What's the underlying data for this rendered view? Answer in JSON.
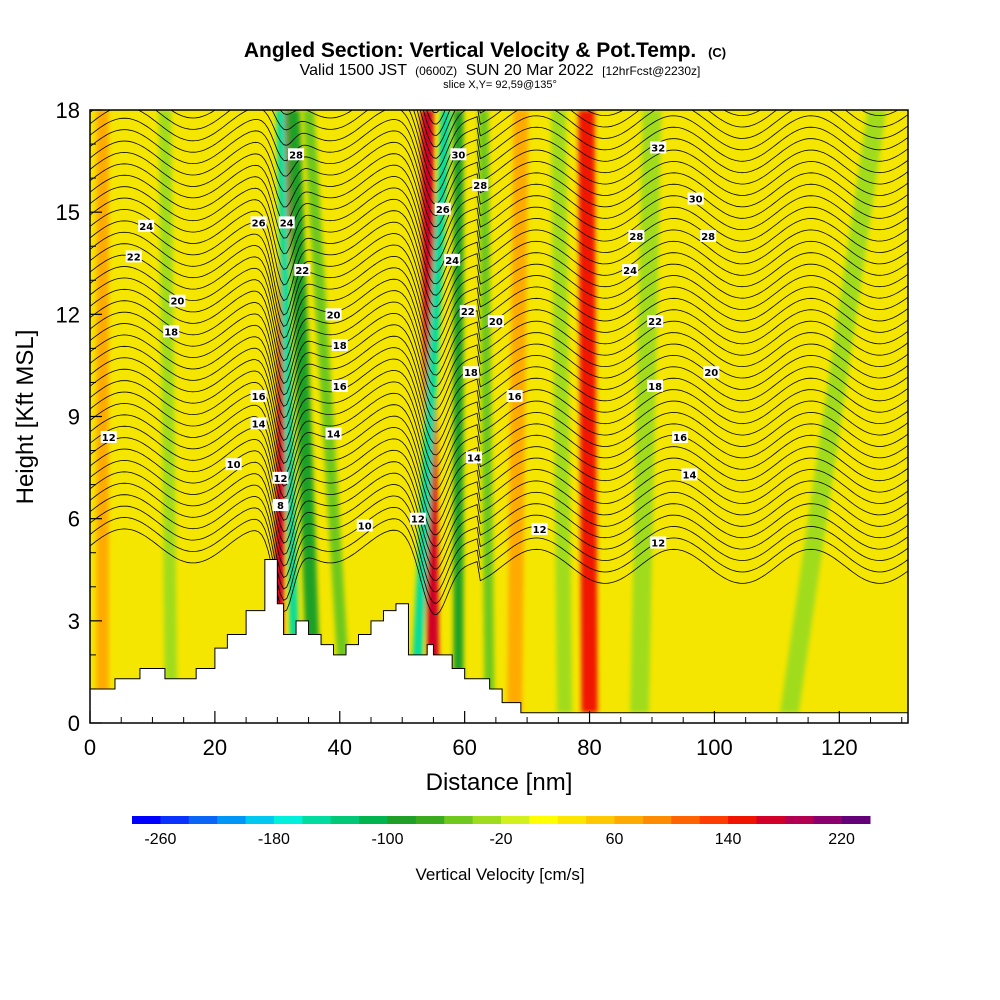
{
  "header": {
    "title": "Angled Section: Vertical Velocity & Pot.Temp.",
    "title_unit": "(C)",
    "valid_prefix": "Valid 1500 JST",
    "valid_utc": "(0600Z)",
    "valid_date": "SUN 20 Mar 2022",
    "forecast": "[12hrFcst@2230z]",
    "slice": "slice X,Y= 92,59@135°"
  },
  "chart_data": {
    "type": "heatmap",
    "xlabel": "Distance [nm]",
    "ylabel": "Height [Kft MSL]",
    "xlim": [
      0,
      131
    ],
    "ylim": [
      0,
      18
    ],
    "xticks": [
      0,
      20,
      40,
      60,
      80,
      100,
      120
    ],
    "yticks": [
      0,
      3,
      6,
      9,
      12,
      15,
      18
    ],
    "xtick_labels": [
      "0",
      "20",
      "40",
      "60",
      "80",
      "100",
      "120"
    ],
    "ytick_labels": [
      "0",
      "3",
      "6",
      "9",
      "12",
      "15",
      "18"
    ],
    "terrain": {
      "x": [
        0,
        4,
        4,
        8,
        8,
        12,
        12,
        17,
        17,
        20,
        20,
        22,
        22,
        25,
        25,
        28,
        28,
        30,
        30,
        31,
        31,
        33,
        33,
        35,
        35,
        37,
        37,
        39,
        39,
        41,
        41,
        43,
        43,
        45,
        45,
        47,
        47,
        49,
        49,
        51,
        51,
        54,
        54,
        55,
        55,
        58,
        58,
        60,
        60,
        64,
        64,
        66,
        66,
        69,
        69,
        71,
        71,
        80,
        80,
        131
      ],
      "y": [
        1.0,
        1.0,
        1.3,
        1.3,
        1.6,
        1.6,
        1.3,
        1.3,
        1.6,
        1.6,
        2.2,
        2.2,
        2.6,
        2.6,
        3.3,
        3.3,
        4.8,
        4.8,
        3.5,
        3.5,
        2.6,
        2.6,
        3.0,
        3.0,
        2.6,
        2.6,
        2.3,
        2.3,
        2.0,
        2.0,
        2.3,
        2.3,
        2.6,
        2.6,
        3.0,
        3.0,
        3.3,
        3.3,
        3.5,
        3.5,
        2.0,
        2.0,
        2.3,
        2.3,
        2.0,
        2.0,
        1.6,
        1.6,
        1.3,
        1.3,
        1.0,
        1.0,
        0.6,
        0.6,
        0.3,
        0.3,
        0.3,
        0.3,
        0.3,
        0.3
      ]
    },
    "vertical_velocity_bands": [
      {
        "x_bottom": 30,
        "x_top": 31.5,
        "width": 1.6,
        "value": 160
      },
      {
        "x_bottom": 33,
        "x_top": 30.5,
        "width": 1.4,
        "value": -150
      },
      {
        "x_bottom": 36,
        "x_top": 32.5,
        "width": 2.2,
        "value": -90
      },
      {
        "x_bottom": 41,
        "x_top": 35,
        "width": 1.8,
        "value": -60
      },
      {
        "x_bottom": 55,
        "x_top": 54,
        "width": 2.0,
        "value": 160
      },
      {
        "x_bottom": 52,
        "x_top": 57,
        "width": 1.6,
        "value": -150
      },
      {
        "x_bottom": 59,
        "x_top": 59,
        "width": 1.6,
        "value": -90
      },
      {
        "x_bottom": 64,
        "x_top": 63,
        "width": 1.6,
        "value": -60
      },
      {
        "x_bottom": 80,
        "x_top": 79.5,
        "width": 2.6,
        "value": 140
      },
      {
        "x_bottom": 68,
        "x_top": 69,
        "width": 2.4,
        "value": 60
      },
      {
        "x_bottom": 76,
        "x_top": 75,
        "width": 2.4,
        "value": -40
      },
      {
        "x_bottom": 88,
        "x_top": 90,
        "width": 3.0,
        "value": -30
      },
      {
        "x_bottom": 13,
        "x_top": 12,
        "width": 2.0,
        "value": -30
      },
      {
        "x_bottom": 112,
        "x_top": 126,
        "width": 3.0,
        "value": -40
      },
      {
        "x_bottom": 2,
        "x_top": 2,
        "width": 2.0,
        "value": 60
      }
    ],
    "theta_isolines": [
      8,
      10,
      12,
      14,
      16,
      18,
      20,
      22,
      24,
      26,
      28,
      30,
      32
    ],
    "contour_labels": [
      {
        "text": "28",
        "x": 33,
        "y": 16.7
      },
      {
        "text": "26",
        "x": 27,
        "y": 14.7
      },
      {
        "text": "24",
        "x": 31.5,
        "y": 14.7
      },
      {
        "text": "24",
        "x": 9,
        "y": 14.6
      },
      {
        "text": "22",
        "x": 7,
        "y": 13.7
      },
      {
        "text": "22",
        "x": 34,
        "y": 13.3
      },
      {
        "text": "20",
        "x": 14,
        "y": 12.4
      },
      {
        "text": "18",
        "x": 13,
        "y": 11.5
      },
      {
        "text": "20",
        "x": 39,
        "y": 12.0
      },
      {
        "text": "18",
        "x": 40,
        "y": 11.1
      },
      {
        "text": "16",
        "x": 40,
        "y": 9.9
      },
      {
        "text": "16",
        "x": 27,
        "y": 9.6
      },
      {
        "text": "14",
        "x": 27,
        "y": 8.8
      },
      {
        "text": "14",
        "x": 39,
        "y": 8.5
      },
      {
        "text": "12",
        "x": 3,
        "y": 8.4
      },
      {
        "text": "10",
        "x": 23,
        "y": 7.6
      },
      {
        "text": "12",
        "x": 30.5,
        "y": 7.2
      },
      {
        "text": "8",
        "x": 30.5,
        "y": 6.4
      },
      {
        "text": "10",
        "x": 44,
        "y": 5.8
      },
      {
        "text": "12",
        "x": 52.5,
        "y": 6.0
      },
      {
        "text": "30",
        "x": 59,
        "y": 16.7
      },
      {
        "text": "28",
        "x": 62.5,
        "y": 15.8
      },
      {
        "text": "26",
        "x": 56.5,
        "y": 15.1
      },
      {
        "text": "24",
        "x": 58,
        "y": 13.6
      },
      {
        "text": "22",
        "x": 60.5,
        "y": 12.1
      },
      {
        "text": "20",
        "x": 65,
        "y": 11.8
      },
      {
        "text": "18",
        "x": 61,
        "y": 10.3
      },
      {
        "text": "16",
        "x": 68,
        "y": 9.6
      },
      {
        "text": "14",
        "x": 61.5,
        "y": 7.8
      },
      {
        "text": "12",
        "x": 72,
        "y": 5.7
      },
      {
        "text": "32",
        "x": 91,
        "y": 16.9
      },
      {
        "text": "30",
        "x": 97,
        "y": 15.4
      },
      {
        "text": "28",
        "x": 87.5,
        "y": 14.3
      },
      {
        "text": "28",
        "x": 99,
        "y": 14.3
      },
      {
        "text": "24",
        "x": 86.5,
        "y": 13.3
      },
      {
        "text": "22",
        "x": 90.5,
        "y": 11.8
      },
      {
        "text": "20",
        "x": 99.5,
        "y": 10.3
      },
      {
        "text": "18",
        "x": 90.5,
        "y": 9.9
      },
      {
        "text": "16",
        "x": 94.5,
        "y": 8.4
      },
      {
        "text": "14",
        "x": 96,
        "y": 7.3
      },
      {
        "text": "12",
        "x": 91,
        "y": 5.3
      }
    ]
  },
  "colorbar": {
    "label": "Vertical Velocity [cm/s]",
    "min": -280,
    "max": 240,
    "step": 20,
    "tick_values": [
      -260,
      -180,
      -100,
      -20,
      60,
      140,
      220
    ],
    "tick_labels": [
      "-260",
      "-180",
      "-100",
      "-20",
      "60",
      "140",
      "220"
    ],
    "colors": [
      "#0000ff",
      "#0a32ff",
      "#0a64f5",
      "#0096f5",
      "#00c8f0",
      "#00f0dc",
      "#00dca0",
      "#00c878",
      "#00b450",
      "#1ea028",
      "#3caa1e",
      "#6ec81e",
      "#a0dc1e",
      "#d2f01e",
      "#ffff00",
      "#ffe600",
      "#ffc800",
      "#ffaa00",
      "#ff8c00",
      "#ff6400",
      "#ff3c00",
      "#f01400",
      "#d20028",
      "#b40050",
      "#8c006e",
      "#640078"
    ]
  }
}
